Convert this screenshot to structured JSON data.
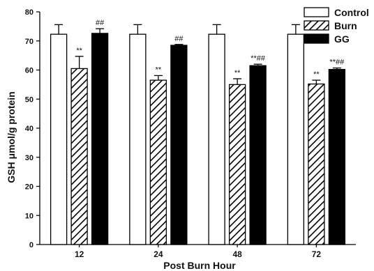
{
  "chart_data": {
    "type": "bar",
    "title": "",
    "xlabel": "Post Burn Hour",
    "ylabel": "GSH  μmol/g protein",
    "categories": [
      "12",
      "24",
      "48",
      "72"
    ],
    "ylim": [
      0,
      80
    ],
    "yticks": [
      0,
      10,
      20,
      30,
      40,
      50,
      60,
      70,
      80
    ],
    "legend_position": "top-right",
    "series": [
      {
        "name": "Control",
        "pattern": "open",
        "values": [
          72.3,
          72.3,
          72.3,
          72.3
        ],
        "errors": [
          3.3,
          3.3,
          3.3,
          3.3
        ],
        "annotations": [
          "",
          "",
          "",
          ""
        ]
      },
      {
        "name": "Burn",
        "pattern": "hatched",
        "values": [
          60.5,
          56.5,
          55.0,
          55.2
        ],
        "errors": [
          4.2,
          1.6,
          2.0,
          1.3
        ],
        "annotations": [
          "**",
          "**",
          "**",
          "**"
        ]
      },
      {
        "name": "GG",
        "pattern": "solid",
        "values": [
          72.6,
          68.5,
          61.5,
          60.2
        ],
        "errors": [
          1.6,
          0.3,
          0.5,
          0.5
        ],
        "annotations": [
          "##",
          "##",
          "**##",
          "**##"
        ]
      }
    ]
  }
}
